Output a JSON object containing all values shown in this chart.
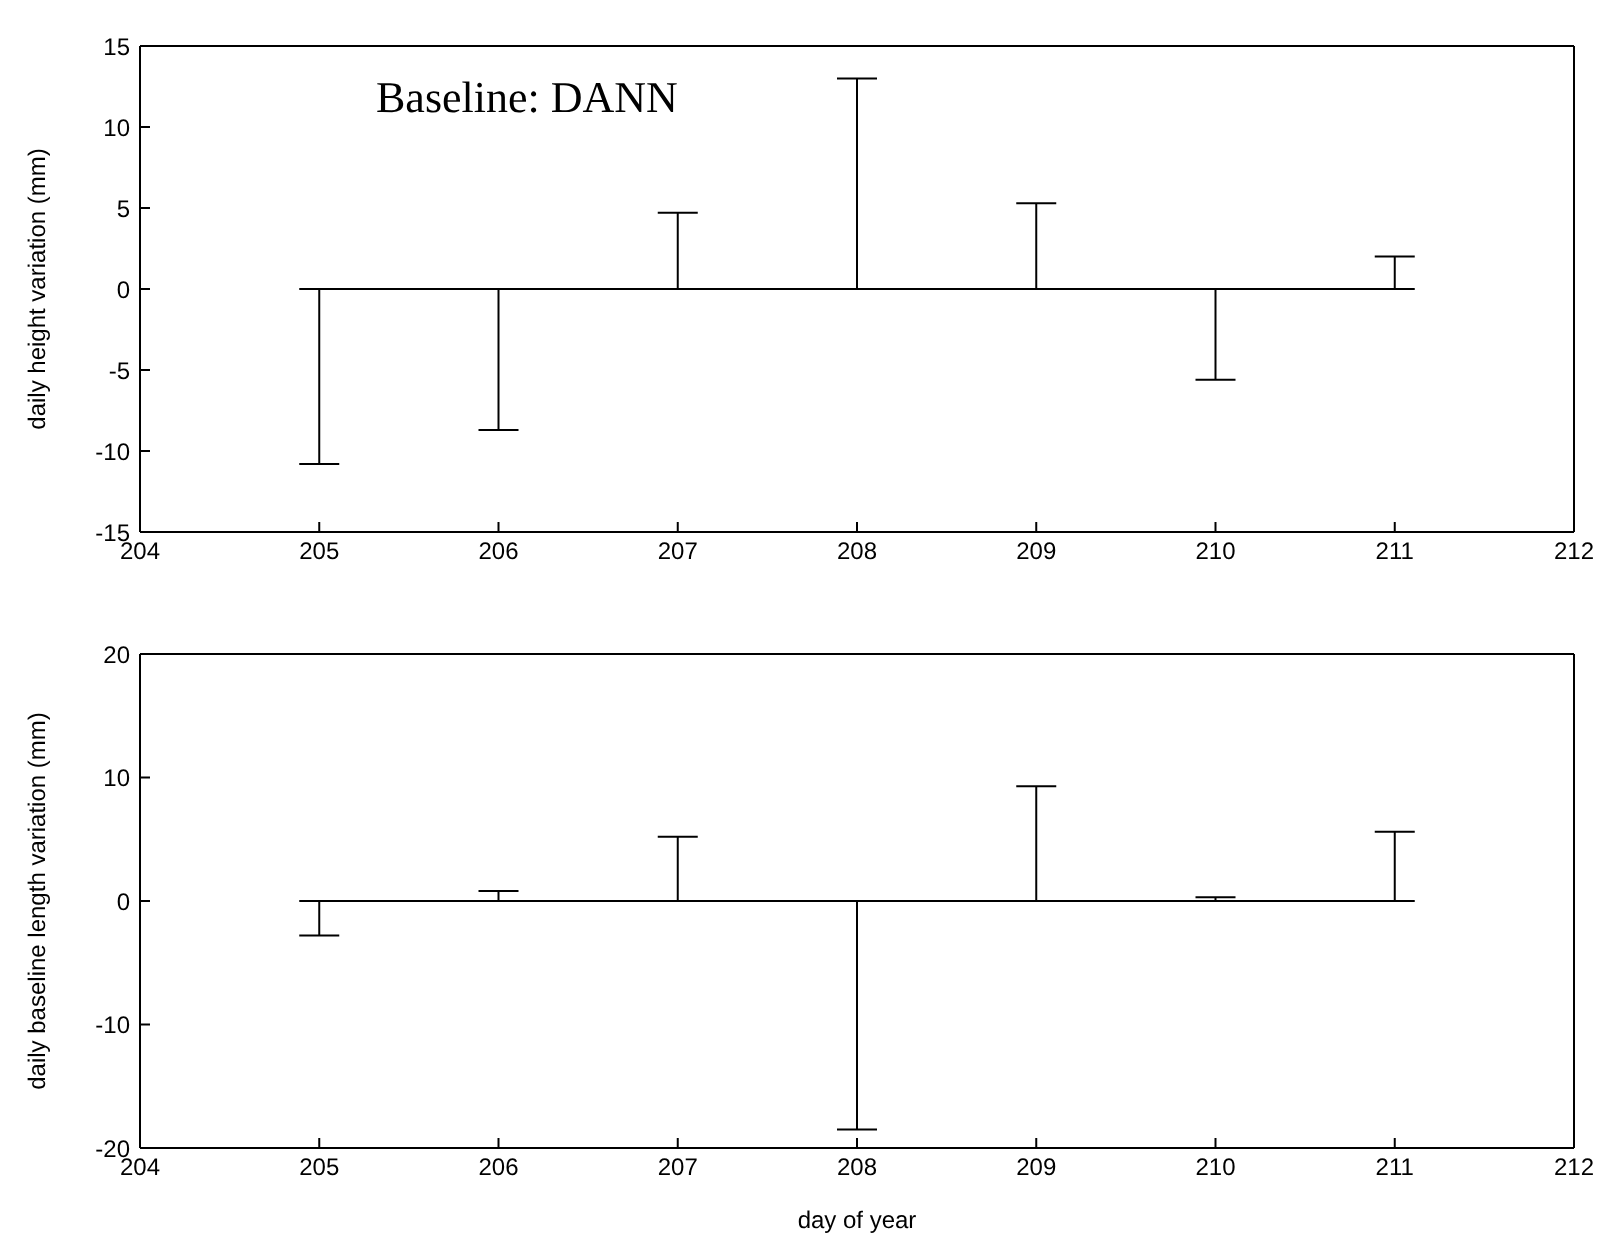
{
  "chart_data": [
    {
      "type": "line",
      "ylabel": "daily height variation (mm)",
      "annotations": [
        "Baseline: DANN"
      ],
      "x": [
        205,
        206,
        207,
        208,
        209,
        210,
        211
      ],
      "xlim": [
        204,
        212
      ],
      "xticks": [
        204,
        205,
        206,
        207,
        208,
        209,
        210,
        211,
        212
      ],
      "ylim": [
        -15,
        15
      ],
      "yticks": [
        -15,
        -10,
        -5,
        0,
        5,
        10,
        15
      ],
      "marker": "none",
      "line_style": "solid",
      "grid": false,
      "legend": false,
      "series": [
        {
          "color": "#000000",
          "values": [
            0,
            0,
            0,
            0,
            0,
            0,
            0
          ],
          "errors": [
            [
              -10.8,
              0
            ],
            [
              -8.7,
              0
            ],
            [
              0,
              4.7
            ],
            [
              0,
              13.0
            ],
            [
              0,
              5.3
            ],
            [
              -5.6,
              0
            ],
            [
              0,
              2.0
            ]
          ]
        }
      ]
    },
    {
      "type": "line",
      "xlabel": "day of year",
      "ylabel": "daily baseline length variation (mm)",
      "x": [
        205,
        206,
        207,
        208,
        209,
        210,
        211
      ],
      "xlim": [
        204,
        212
      ],
      "xticks": [
        204,
        205,
        206,
        207,
        208,
        209,
        210,
        211,
        212
      ],
      "ylim": [
        -20,
        20
      ],
      "yticks": [
        -20,
        -10,
        0,
        10,
        20
      ],
      "marker": "none",
      "line_style": "solid",
      "grid": false,
      "legend": false,
      "series": [
        {
          "color": "#000000",
          "values": [
            0,
            0,
            0,
            0,
            0,
            0,
            0
          ],
          "errors": [
            [
              -2.8,
              0
            ],
            [
              0,
              0.8
            ],
            [
              0,
              5.2
            ],
            [
              -18.5,
              0
            ],
            [
              0,
              9.3
            ],
            [
              0,
              0.3
            ],
            [
              0,
              5.6
            ]
          ]
        }
      ]
    }
  ]
}
